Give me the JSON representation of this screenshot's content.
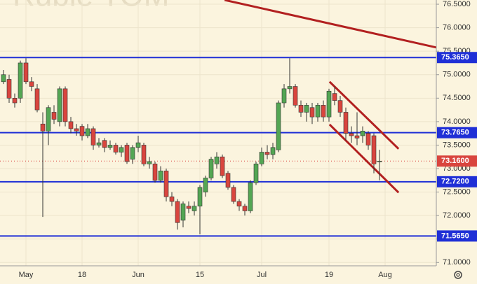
{
  "chart_data": {
    "type": "candlestick",
    "watermark": "Ruble TOM",
    "categories": [
      null,
      null,
      null,
      null,
      "May",
      null,
      null,
      null,
      null,
      null,
      null,
      null,
      null,
      null,
      "18",
      null,
      null,
      null,
      null,
      null,
      null,
      null,
      null,
      null,
      "Jun",
      null,
      null,
      null,
      null,
      null,
      null,
      null,
      null,
      null,
      null,
      "15",
      null,
      null,
      null,
      null,
      null,
      null,
      null,
      null,
      null,
      null,
      "Jul",
      null,
      null,
      null,
      null,
      null,
      null,
      null,
      null,
      null,
      null,
      null,
      "19",
      null,
      null,
      null,
      null,
      null,
      null,
      null,
      null,
      null,
      "Aug",
      null
    ],
    "open": [
      74.85,
      74.9,
      74.5,
      74.5,
      75.25,
      74.85,
      74.7,
      73.95,
      73.8,
      74.2,
      74.0,
      74.7,
      74.0,
      73.85,
      73.9,
      73.7,
      73.85,
      73.5,
      73.6,
      73.45,
      73.5,
      73.35,
      73.5,
      73.2,
      73.45,
      73.5,
      73.1,
      73.1,
      72.75,
      72.95,
      72.4,
      72.3,
      71.9,
      72.2,
      72.1,
      72.2,
      72.5,
      72.8,
      73.1,
      73.25,
      72.9,
      72.6,
      72.3,
      72.2,
      72.1,
      72.7,
      73.1,
      73.35,
      73.3,
      73.4,
      74.4,
      74.7,
      74.75,
      74.35,
      74.2,
      74.3,
      74.1,
      74.35,
      74.1,
      74.6,
      74.45,
      74.2,
      73.75,
      73.7,
      73.7,
      73.75,
      73.7,
      73.15,
      null,
      null
    ],
    "high": [
      75.1,
      75.0,
      74.6,
      75.3,
      75.35,
      74.95,
      74.8,
      74.2,
      74.35,
      74.35,
      74.75,
      74.75,
      74.1,
      73.95,
      73.95,
      73.95,
      73.9,
      73.65,
      73.65,
      73.6,
      73.55,
      73.5,
      73.55,
      73.5,
      73.7,
      73.55,
      73.25,
      73.15,
      73.05,
      73.0,
      72.5,
      72.35,
      72.3,
      72.3,
      72.3,
      72.65,
      72.85,
      73.25,
      73.35,
      73.3,
      72.95,
      72.65,
      72.35,
      72.25,
      72.75,
      73.15,
      73.45,
      73.5,
      73.55,
      74.45,
      74.8,
      75.35,
      74.8,
      74.45,
      74.4,
      74.4,
      74.4,
      74.45,
      74.7,
      74.75,
      74.55,
      74.3,
      73.9,
      74.2,
      73.9,
      73.8,
      73.75,
      73.4,
      null,
      null
    ],
    "low": [
      74.8,
      74.4,
      74.3,
      74.4,
      74.8,
      74.65,
      74.2,
      71.97,
      73.5,
      73.95,
      73.9,
      73.9,
      73.75,
      73.7,
      73.6,
      73.65,
      73.4,
      73.45,
      73.35,
      73.4,
      73.3,
      73.25,
      73.1,
      73.1,
      73.35,
      73.05,
      73.0,
      72.7,
      72.7,
      72.3,
      72.2,
      71.7,
      71.75,
      72.05,
      72.0,
      71.6,
      72.4,
      72.75,
      73.0,
      72.8,
      72.55,
      72.25,
      72.1,
      72.0,
      72.05,
      72.65,
      73.05,
      73.2,
      73.2,
      73.35,
      74.3,
      74.6,
      74.3,
      74.1,
      74.0,
      73.95,
      74.0,
      74.0,
      74.0,
      74.35,
      74.1,
      73.6,
      73.55,
      73.5,
      73.55,
      73.4,
      72.9,
      72.75,
      null,
      null
    ],
    "close": [
      75.0,
      74.5,
      74.4,
      75.25,
      74.85,
      74.75,
      74.25,
      73.8,
      74.3,
      74.05,
      74.7,
      74.0,
      73.85,
      73.8,
      73.7,
      73.85,
      73.5,
      73.55,
      73.45,
      73.5,
      73.35,
      73.45,
      73.15,
      73.45,
      73.55,
      73.1,
      73.15,
      72.75,
      72.95,
      72.4,
      72.3,
      71.85,
      72.25,
      72.15,
      72.2,
      72.6,
      72.8,
      73.2,
      73.25,
      72.85,
      72.6,
      72.3,
      72.2,
      72.1,
      72.7,
      73.1,
      73.35,
      73.3,
      73.45,
      74.4,
      74.7,
      74.75,
      74.35,
      74.2,
      74.35,
      74.1,
      74.35,
      74.1,
      74.65,
      74.45,
      74.2,
      73.75,
      73.7,
      73.65,
      73.8,
      73.5,
      73.1,
      73.16,
      null,
      null
    ],
    "up_color": "#53a653",
    "down_color": "#d9453e",
    "ylim": [
      70.93,
      76.59
    ],
    "yticks": [
      {
        "value": 71.0,
        "label": "71.0000"
      },
      {
        "value": 71.5,
        "label": "71.5000"
      },
      {
        "value": 72.0,
        "label": "72.0000"
      },
      {
        "value": 72.5,
        "label": "72.5000"
      },
      {
        "value": 73.0,
        "label": "73.0000"
      },
      {
        "value": 73.5,
        "label": "73.5000"
      },
      {
        "value": 74.0,
        "label": "74.0000"
      },
      {
        "value": 74.5,
        "label": "74.5000"
      },
      {
        "value": 75.0,
        "label": "75.0000"
      },
      {
        "value": 75.5,
        "label": "75.5000"
      },
      {
        "value": 76.0,
        "label": "76.0000"
      },
      {
        "value": 76.5,
        "label": "76.5000"
      }
    ],
    "grid": true,
    "hlines": [
      {
        "value": 75.365,
        "label": "75.3650"
      },
      {
        "value": 73.765,
        "label": "73.7650"
      },
      {
        "value": 72.72,
        "label": "72.7200"
      },
      {
        "value": 71.565,
        "label": "71.5650"
      }
    ],
    "hline_color": "#1f2fd6",
    "last_price": {
      "value": 73.16,
      "label": "73.1600"
    },
    "last_price_color": "#d9453e",
    "trendlines": [
      {
        "color": "#b22020",
        "x": [
          39.4,
          77.1
        ],
        "y": [
          76.59,
          75.58
        ]
      },
      {
        "color": "#b22020",
        "x": [
          58.1,
          70.4
        ],
        "y": [
          74.85,
          73.42
        ]
      },
      {
        "color": "#b22020",
        "x": [
          58.1,
          70.4
        ],
        "y": [
          73.94,
          72.49
        ]
      }
    ]
  }
}
